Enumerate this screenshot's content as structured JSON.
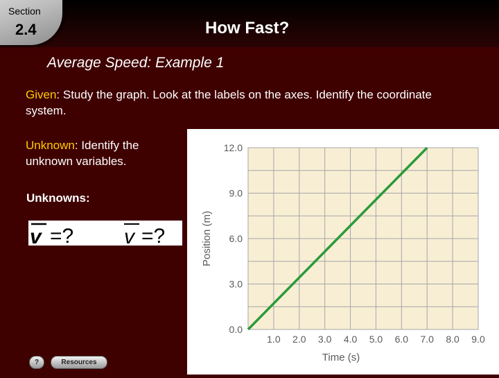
{
  "header": {
    "section_label": "Section",
    "section_number": "2.4",
    "title": "How Fast?"
  },
  "subtitle": "Average Speed: Example 1",
  "given": {
    "label": "Given",
    "text": ": Study the graph. Look at the labels on the axes. Identify the coordinate system."
  },
  "unknown": {
    "label": "Unknown",
    "text": ": Identify the unknown variables."
  },
  "unknowns_label": "Unknowns:",
  "formula": {
    "symbol": "v",
    "rhs": "=?"
  },
  "colors": {
    "background": "#3f0000",
    "label_yellow": "#ffcc00",
    "grid_fill": "#f8eed4",
    "line_green": "#2a9a3a"
  },
  "chart_data": {
    "type": "line",
    "xlabel": "Time (s)",
    "ylabel": "Position (m)",
    "x_ticks": [
      "1.0",
      "2.0",
      "3.0",
      "4.0",
      "5.0",
      "6.0",
      "7.0",
      "8.0",
      "9.0"
    ],
    "y_ticks": [
      "0.0",
      "3.0",
      "6.0",
      "9.0",
      "12.0"
    ],
    "xlim": [
      0,
      9
    ],
    "ylim": [
      0,
      12
    ],
    "grid": true,
    "series": [
      {
        "x": [
          0,
          7.0
        ],
        "y": [
          0,
          12.0
        ]
      }
    ]
  },
  "footer": {
    "help_icon": "?",
    "resources_label": "Resources"
  }
}
